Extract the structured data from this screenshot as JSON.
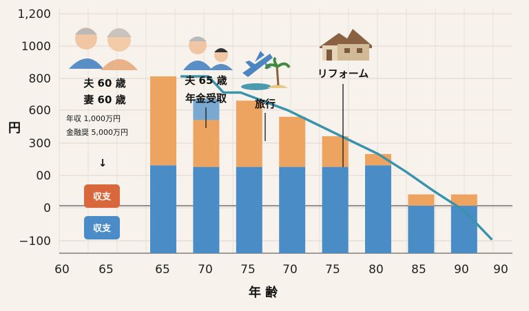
{
  "chart_data": {
    "type": "bar",
    "title": "",
    "xlabel": "年 齢",
    "ylabel": "円",
    "y_tick_labels": [
      "1,200",
      "1000",
      "800",
      "600",
      "300",
      "00",
      "0",
      "−100"
    ],
    "x_tick_labels": [
      "60",
      "65",
      "65",
      "70",
      "75",
      "70",
      "75",
      "80",
      "85",
      "90",
      "90"
    ],
    "bar_categories": [
      "65",
      "70",
      "75",
      "70",
      "75",
      "80",
      "85",
      "90"
    ],
    "series": [
      {
        "values": [
          1.25,
          1.2,
          1.2,
          1.2,
          1.2,
          1.25,
          0,
          0
        ]
      },
      {
        "values": [
          0,
          0,
          0,
          0,
          0,
          0,
          -0.05,
          -0.05
        ]
      },
      {
        "values": [
          2.75,
          1.45,
          2.05,
          1.55,
          0.95,
          0.35,
          0.35,
          0.35
        ]
      },
      {
        "values": [
          0,
          0.65,
          0,
          0,
          0,
          0,
          0,
          0
        ]
      }
    ],
    "line": {
      "x": [
        0.4,
        1.05,
        1.4,
        1.8,
        2.4,
        2.9,
        3.6,
        4.3,
        5.0,
        5.65,
        6.3,
        7.0,
        7.65
      ],
      "y": [
        4.0,
        4.0,
        3.5,
        3.5,
        3.2,
        2.95,
        2.5,
        2.05,
        1.6,
        1.05,
        0.45,
        -0.15,
        -1.05
      ]
    },
    "legend_position": "left",
    "grid": true,
    "annotations": {
      "retire": {
        "husband": "夫 60 歳",
        "wife": "妻 60 歳",
        "income": "年収  1,000万円",
        "assets": "金融奨  5,000万円",
        "arrow": "↓"
      },
      "pension": {
        "husband": "夫 65 歳",
        "event": "年金受取"
      },
      "travel": "旅行",
      "reform": "リフォーム"
    },
    "legend": [
      {
        "label": "収支",
        "color": "#d9673c"
      },
      {
        "label": "収支",
        "color": "#4b8bc8"
      }
    ],
    "colors": {
      "blue": "#4a8cc6",
      "orange": "#eea461",
      "light_blue": "#79a9d1",
      "line": "#3a93ad"
    }
  }
}
